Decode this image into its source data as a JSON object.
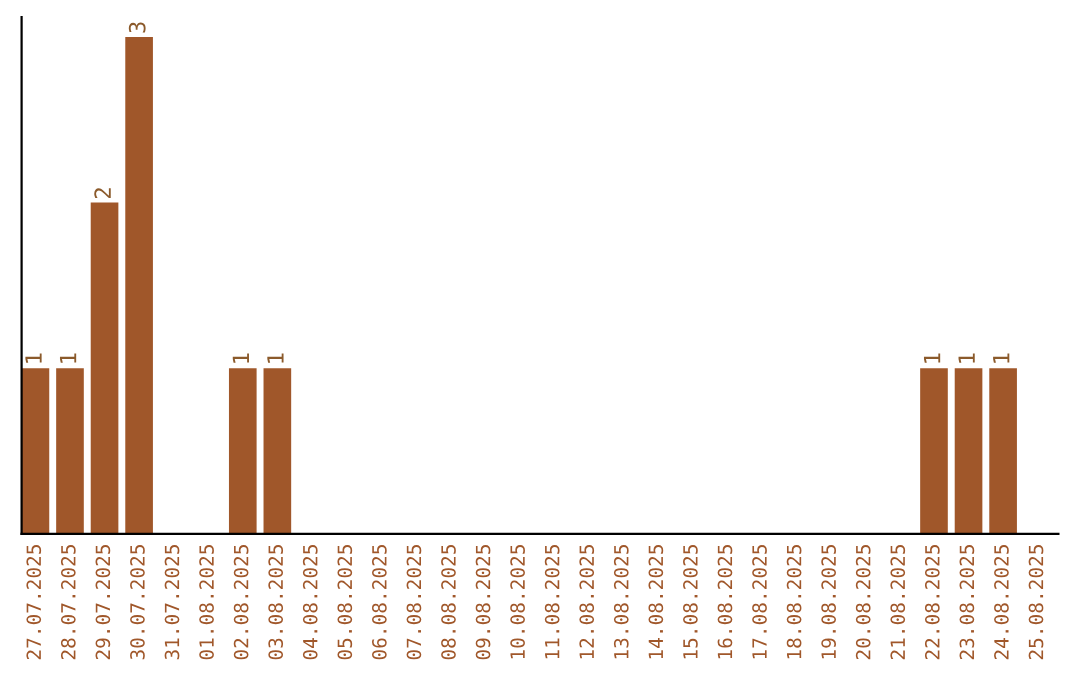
{
  "chart_data": {
    "type": "bar",
    "categories": [
      "27.07.2025",
      "28.07.2025",
      "29.07.2025",
      "30.07.2025",
      "31.07.2025",
      "01.08.2025",
      "02.08.2025",
      "03.08.2025",
      "04.08.2025",
      "05.08.2025",
      "06.08.2025",
      "07.08.2025",
      "08.08.2025",
      "09.08.2025",
      "10.08.2025",
      "11.08.2025",
      "12.08.2025",
      "13.08.2025",
      "14.08.2025",
      "15.08.2025",
      "16.08.2025",
      "17.08.2025",
      "18.08.2025",
      "19.08.2025",
      "20.08.2025",
      "21.08.2025",
      "22.08.2025",
      "23.08.2025",
      "24.08.2025",
      "25.08.2025"
    ],
    "values": [
      1,
      1,
      2,
      3,
      0,
      0,
      1,
      1,
      0,
      0,
      0,
      0,
      0,
      0,
      0,
      0,
      0,
      0,
      0,
      0,
      0,
      0,
      0,
      0,
      0,
      0,
      1,
      1,
      1,
      0
    ],
    "value_labels": [
      "1",
      "1",
      "2",
      "3",
      null,
      null,
      "1",
      "1",
      null,
      null,
      null,
      null,
      null,
      null,
      null,
      null,
      null,
      null,
      null,
      null,
      null,
      null,
      null,
      null,
      null,
      null,
      "1",
      "1",
      "1",
      null
    ],
    "color": "#a0572a",
    "tick_labels": "x",
    "grid": false,
    "legend": false
  }
}
